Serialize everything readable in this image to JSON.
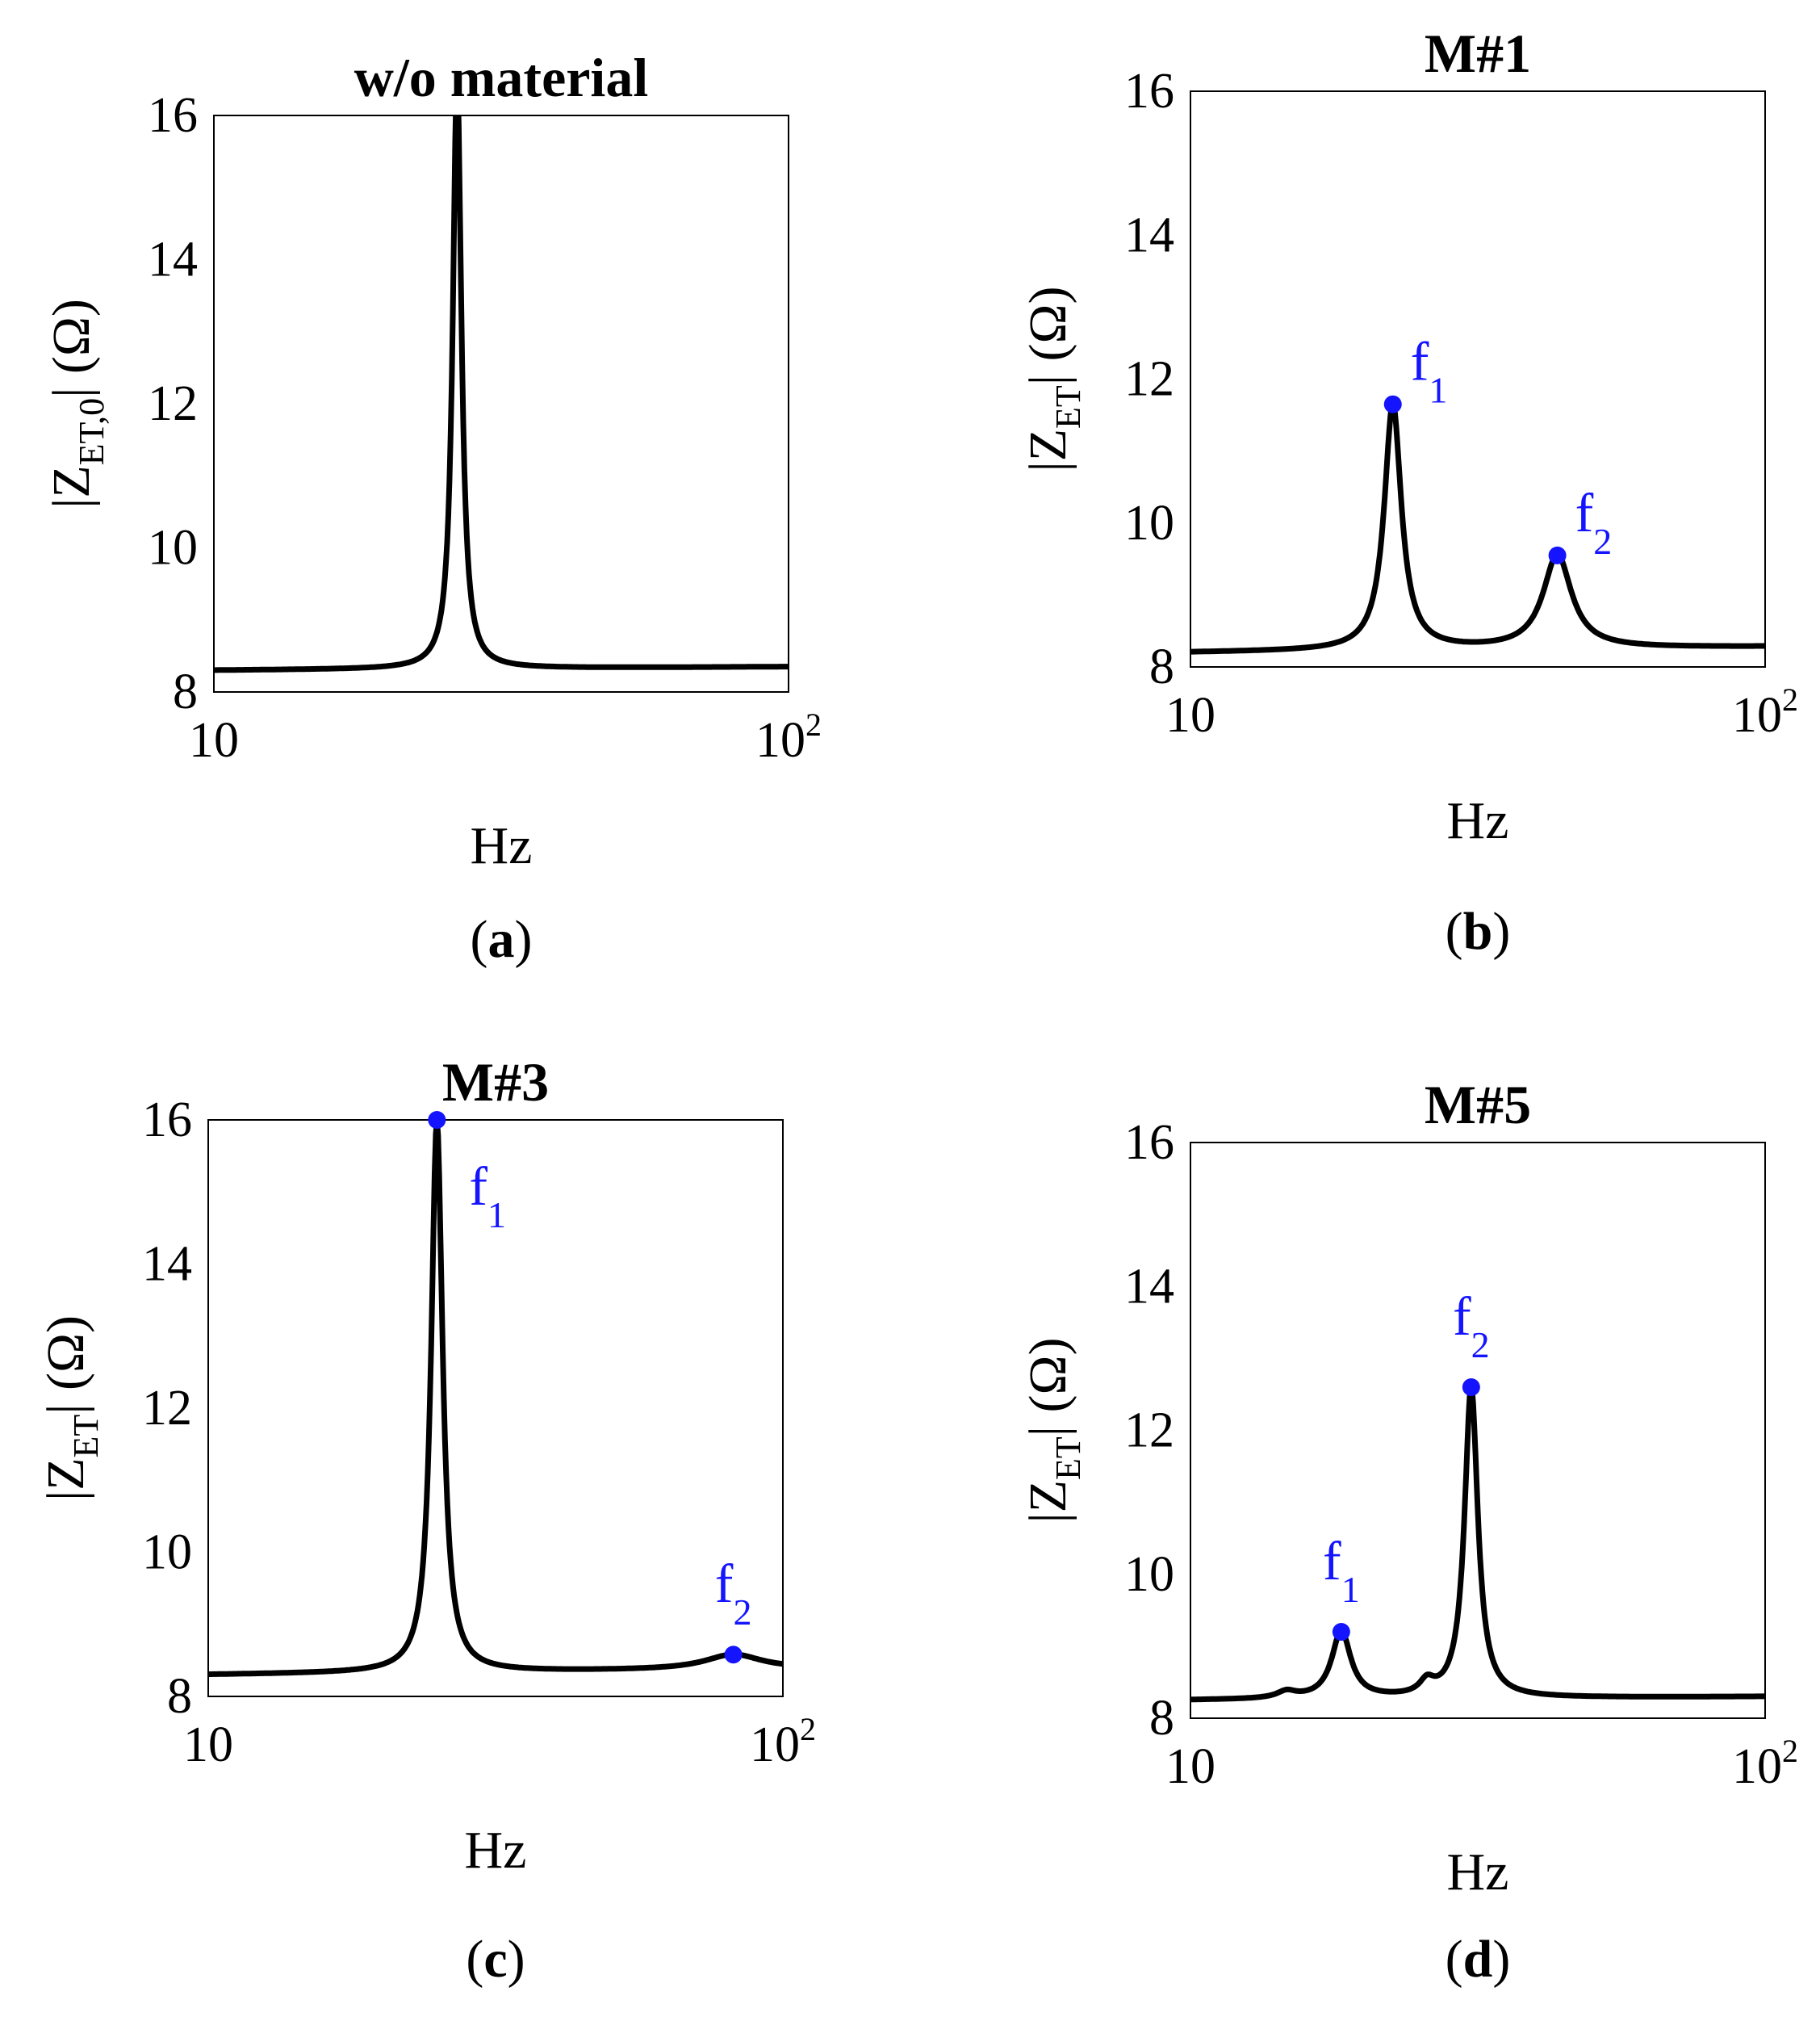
{
  "chart_data": [
    {
      "type": "line",
      "panel_label": "a",
      "title": "w/o material",
      "xlabel": "Hz",
      "ylabel_main": "|Z",
      "ylabel_sub": "ET,0",
      "ylabel_tail": "| (Ω)",
      "xscale": "log",
      "xlim": [
        10,
        100
      ],
      "ylim": [
        8,
        16
      ],
      "yticks": [
        "8",
        "10",
        "12",
        "14",
        "16"
      ],
      "xtick_left": "10",
      "xtick_right_base": "10",
      "xtick_right_exp": "2",
      "baseline": [
        8.3,
        8.35
      ],
      "peaks": [
        {
          "freq": 26.5,
          "peak": 16.6,
          "width": 0.009
        }
      ],
      "annotations": [],
      "color_line": "#000000",
      "color_marker": "#1414ff"
    },
    {
      "type": "line",
      "panel_label": "b",
      "title": "M#1",
      "xlabel": "Hz",
      "ylabel_main": "|Z",
      "ylabel_sub": "ET",
      "ylabel_tail": "| (Ω)",
      "xscale": "log",
      "xlim": [
        10,
        100
      ],
      "ylim": [
        8,
        16
      ],
      "yticks": [
        "8",
        "10",
        "12",
        "14",
        "16"
      ],
      "xtick_left": "10",
      "xtick_right_base": "10",
      "xtick_right_exp": "2",
      "baseline": [
        8.2,
        8.28
      ],
      "peaks": [
        {
          "freq": 22.5,
          "peak": 11.65,
          "width": 0.018
        },
        {
          "freq": 43.5,
          "peak": 9.55,
          "width": 0.03
        }
      ],
      "annotations": [
        {
          "base": "f",
          "sub": "1",
          "x": 22.5,
          "y": 11.65,
          "pos": "upper-right"
        },
        {
          "base": "f",
          "sub": "2",
          "x": 43.5,
          "y": 9.55,
          "pos": "upper-right"
        }
      ],
      "color_line": "#000000",
      "color_marker": "#1414ff"
    },
    {
      "type": "line",
      "panel_label": "c",
      "title": "M#3",
      "xlabel": "Hz",
      "ylabel_main": "|Z",
      "ylabel_sub": "ET",
      "ylabel_tail": "| (Ω)",
      "xscale": "log",
      "xlim": [
        10,
        100
      ],
      "ylim": [
        8,
        16
      ],
      "yticks": [
        "8",
        "10",
        "12",
        "14",
        "16"
      ],
      "xtick_left": "10",
      "xtick_right_base": "10",
      "xtick_right_exp": "2",
      "baseline": [
        8.3,
        8.38
      ],
      "peaks": [
        {
          "freq": 25.0,
          "peak": 16.0,
          "width": 0.012
        },
        {
          "freq": 82.0,
          "peak": 8.58,
          "width": 0.06
        }
      ],
      "annotations": [
        {
          "base": "f",
          "sub": "1",
          "x": 25.0,
          "y": 16.0,
          "pos": "lower-right"
        },
        {
          "base": "f",
          "sub": "2",
          "x": 82.0,
          "y": 8.58,
          "pos": "above"
        }
      ],
      "color_line": "#000000",
      "color_marker": "#1414ff"
    },
    {
      "type": "line",
      "panel_label": "d",
      "title": "M#5",
      "xlabel": "Hz",
      "ylabel_main": "|Z",
      "ylabel_sub": "ET",
      "ylabel_tail": "| (Ω)",
      "xscale": "log",
      "xlim": [
        10,
        100
      ],
      "ylim": [
        8,
        16
      ],
      "yticks": [
        "8",
        "10",
        "12",
        "14",
        "16"
      ],
      "xtick_left": "10",
      "xtick_right_base": "10",
      "xtick_right_exp": "2",
      "baseline": [
        8.25,
        8.3
      ],
      "peaks": [
        {
          "freq": 18.3,
          "peak": 9.2,
          "width": 0.02
        },
        {
          "freq": 30.8,
          "peak": 12.6,
          "width": 0.014
        },
        {
          "freq": 14.7,
          "peak": 8.35,
          "width": 0.02
        },
        {
          "freq": 25.8,
          "peak": 8.45,
          "width": 0.015
        }
      ],
      "annotations": [
        {
          "base": "f",
          "sub": "1",
          "x": 18.3,
          "y": 9.2,
          "pos": "above"
        },
        {
          "base": "f",
          "sub": "2",
          "x": 30.8,
          "y": 12.6,
          "pos": "above"
        }
      ],
      "color_line": "#000000",
      "color_marker": "#1414ff"
    }
  ]
}
